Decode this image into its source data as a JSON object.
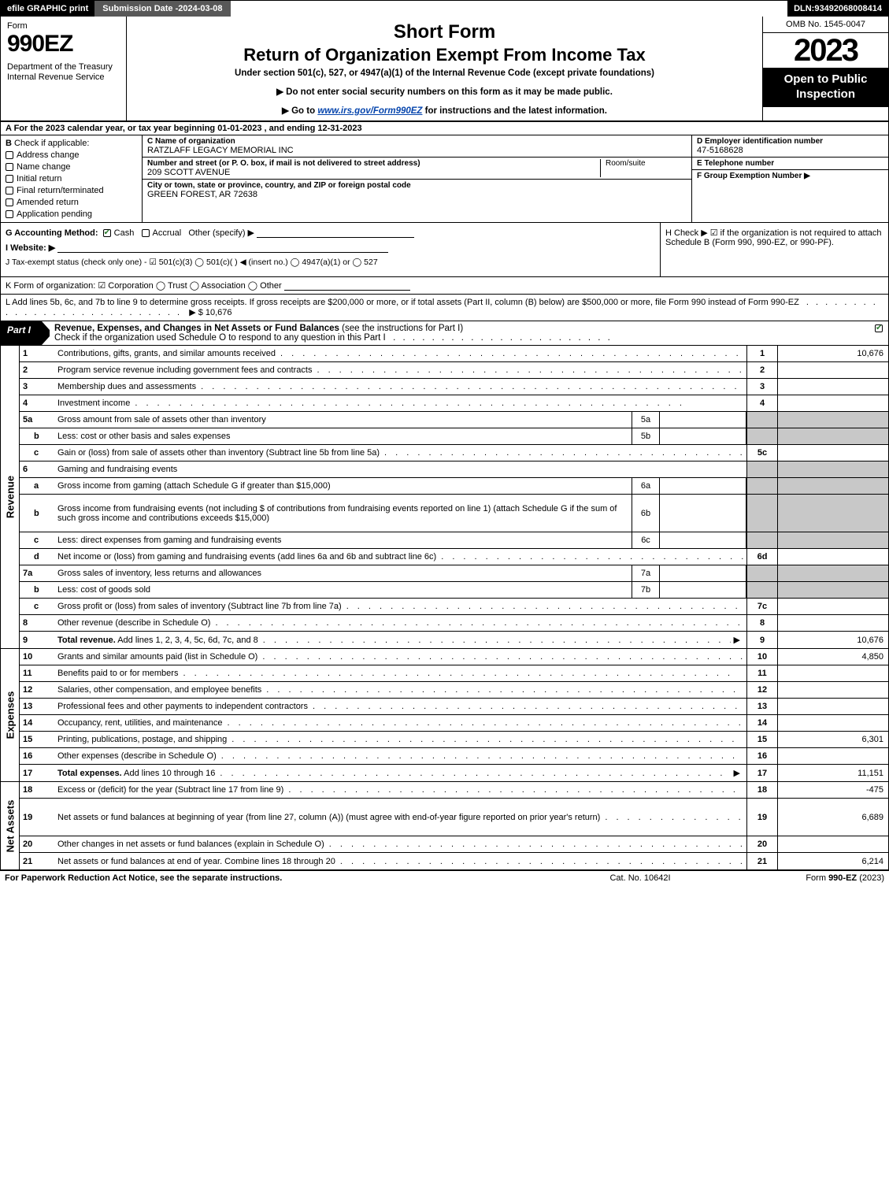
{
  "topbar": {
    "efile": "efile GRAPHIC print",
    "submission_label": "Submission Date - ",
    "submission_date": "2024-03-08",
    "dln_label": "DLN: ",
    "dln": "93492068008414"
  },
  "header": {
    "form_label": "Form",
    "form_num": "990EZ",
    "dept": "Department of the Treasury\nInternal Revenue Service",
    "short": "Short Form",
    "return": "Return of Organization Exempt From Income Tax",
    "under": "Under section 501(c), 527, or 4947(a)(1) of the Internal Revenue Code (except private foundations)",
    "instr1": "▶ Do not enter social security numbers on this form as it may be made public.",
    "instr2_pre": "▶ Go to ",
    "instr2_link": "www.irs.gov/Form990EZ",
    "instr2_post": " for instructions and the latest information.",
    "omb": "OMB No. 1545-0047",
    "year": "2023",
    "open": "Open to Public Inspection"
  },
  "section_a": "A  For the 2023 calendar year, or tax year beginning 01-01-2023 , and ending 12-31-2023",
  "section_b": {
    "label": "B",
    "sub": "Check if applicable:",
    "opts": [
      "Address change",
      "Name change",
      "Initial return",
      "Final return/terminated",
      "Amended return",
      "Application pending"
    ]
  },
  "section_c": {
    "c_label": "C Name of organization",
    "c_val": "RATZLAFF LEGACY MEMORIAL INC",
    "street_label": "Number and street (or P. O. box, if mail is not delivered to street address)",
    "room_label": "Room/suite",
    "street_val": "209 SCOTT AVENUE",
    "city_label": "City or town, state or province, country, and ZIP or foreign postal code",
    "city_val": "GREEN FOREST, AR  72638"
  },
  "section_d": {
    "d_label": "D Employer identification number",
    "d_val": "47-5168628",
    "e_label": "E Telephone number",
    "e_val": "",
    "f_label": "F Group Exemption Number  ▶",
    "f_val": ""
  },
  "section_g": {
    "label": "G Accounting Method:",
    "cash": "Cash",
    "accrual": "Accrual",
    "other": "Other (specify) ▶"
  },
  "section_h": "H  Check ▶ ☑ if the organization is not required to attach Schedule B (Form 990, 990-EZ, or 990-PF).",
  "section_i": "I Website: ▶",
  "section_j": "J Tax-exempt status (check only one) - ☑ 501(c)(3)  ◯ 501(c)(  ) ◀ (insert no.)  ◯ 4947(a)(1) or  ◯ 527",
  "section_k": "K Form of organization:  ☑ Corporation  ◯ Trust  ◯ Association  ◯ Other",
  "section_l": {
    "text": "L Add lines 5b, 6c, and 7b to line 9 to determine gross receipts. If gross receipts are $200,000 or more, or if total assets (Part II, column (B) below) are $500,000 or more, file Form 990 instead of Form 990-EZ",
    "amount": "▶ $ 10,676"
  },
  "part1": {
    "tab": "Part I",
    "title_bold": "Revenue, Expenses, and Changes in Net Assets or Fund Balances",
    "title_rest": " (see the instructions for Part I)",
    "check_text": "Check if the organization used Schedule O to respond to any question in this Part I"
  },
  "sidelabels": {
    "rev": "Revenue",
    "exp": "Expenses",
    "na": "Net Assets"
  },
  "revenue_lines": [
    {
      "num": "1",
      "desc": "Contributions, gifts, grants, and similar amounts received",
      "rnum": "1",
      "rval": "10,676"
    },
    {
      "num": "2",
      "desc": "Program service revenue including government fees and contracts",
      "rnum": "2",
      "rval": ""
    },
    {
      "num": "3",
      "desc": "Membership dues and assessments",
      "rnum": "3",
      "rval": ""
    },
    {
      "num": "4",
      "desc": "Investment income",
      "rnum": "4",
      "rval": ""
    },
    {
      "num": "5a",
      "desc": "Gross amount from sale of assets other than inventory",
      "innum": "5a",
      "inval": "",
      "rshade": true
    },
    {
      "num": "b",
      "sub": true,
      "desc": "Less: cost or other basis and sales expenses",
      "innum": "5b",
      "inval": "",
      "rshade": true
    },
    {
      "num": "c",
      "sub": true,
      "desc": "Gain or (loss) from sale of assets other than inventory (Subtract line 5b from line 5a)",
      "rnum": "5c",
      "rval": ""
    },
    {
      "num": "6",
      "desc": "Gaming and fundraising events",
      "noval": true,
      "rshade": true
    },
    {
      "num": "a",
      "sub": true,
      "desc": "Gross income from gaming (attach Schedule G if greater than $15,000)",
      "innum": "6a",
      "inval": "",
      "rshade": true
    },
    {
      "num": "b",
      "sub": true,
      "desc": "Gross income from fundraising events (not including $                      of contributions from fundraising events reported on line 1) (attach Schedule G if the sum of such gross income and contributions exceeds $15,000)",
      "innum": "6b",
      "inval": "",
      "rshade": true,
      "tall": true
    },
    {
      "num": "c",
      "sub": true,
      "desc": "Less: direct expenses from gaming and fundraising events",
      "innum": "6c",
      "inval": "",
      "rshade": true
    },
    {
      "num": "d",
      "sub": true,
      "desc": "Net income or (loss) from gaming and fundraising events (add lines 6a and 6b and subtract line 6c)",
      "rnum": "6d",
      "rval": ""
    },
    {
      "num": "7a",
      "desc": "Gross sales of inventory, less returns and allowances",
      "innum": "7a",
      "inval": "",
      "rshade": true
    },
    {
      "num": "b",
      "sub": true,
      "desc": "Less: cost of goods sold",
      "innum": "7b",
      "inval": "",
      "rshade": true
    },
    {
      "num": "c",
      "sub": true,
      "desc": "Gross profit or (loss) from sales of inventory (Subtract line 7b from line 7a)",
      "rnum": "7c",
      "rval": ""
    },
    {
      "num": "8",
      "desc": "Other revenue (describe in Schedule O)",
      "rnum": "8",
      "rval": ""
    },
    {
      "num": "9",
      "bold": true,
      "desc": "Total revenue. Add lines 1, 2, 3, 4, 5c, 6d, 7c, and 8",
      "arrow": true,
      "rnum": "9",
      "rval": "10,676"
    }
  ],
  "expense_lines": [
    {
      "num": "10",
      "desc": "Grants and similar amounts paid (list in Schedule O)",
      "rnum": "10",
      "rval": "4,850"
    },
    {
      "num": "11",
      "desc": "Benefits paid to or for members",
      "rnum": "11",
      "rval": ""
    },
    {
      "num": "12",
      "desc": "Salaries, other compensation, and employee benefits",
      "rnum": "12",
      "rval": ""
    },
    {
      "num": "13",
      "desc": "Professional fees and other payments to independent contractors",
      "rnum": "13",
      "rval": ""
    },
    {
      "num": "14",
      "desc": "Occupancy, rent, utilities, and maintenance",
      "rnum": "14",
      "rval": ""
    },
    {
      "num": "15",
      "desc": "Printing, publications, postage, and shipping",
      "rnum": "15",
      "rval": "6,301"
    },
    {
      "num": "16",
      "desc": "Other expenses (describe in Schedule O)",
      "rnum": "16",
      "rval": ""
    },
    {
      "num": "17",
      "bold": true,
      "desc": "Total expenses. Add lines 10 through 16",
      "arrow": true,
      "rnum": "17",
      "rval": "11,151"
    }
  ],
  "netasset_lines": [
    {
      "num": "18",
      "desc": "Excess or (deficit) for the year (Subtract line 17 from line 9)",
      "rnum": "18",
      "rval": "-475"
    },
    {
      "num": "19",
      "desc": "Net assets or fund balances at beginning of year (from line 27, column (A)) (must agree with end-of-year figure reported on prior year's return)",
      "rnum": "19",
      "rval": "6,689",
      "tall": true
    },
    {
      "num": "20",
      "desc": "Other changes in net assets or fund balances (explain in Schedule O)",
      "rnum": "20",
      "rval": ""
    },
    {
      "num": "21",
      "desc": "Net assets or fund balances at end of year. Combine lines 18 through 20",
      "rnum": "21",
      "rval": "6,214"
    }
  ],
  "footer": {
    "left": "For Paperwork Reduction Act Notice, see the separate instructions.",
    "center": "Cat. No. 10642I",
    "right_pre": "Form ",
    "right_bold": "990-EZ",
    "right_post": " (2023)"
  },
  "dots": ". . . . . . . . . . . . . . . . . . . . . . . . . . . . . . . . . . . . . . . . . . . . . . . . . ."
}
